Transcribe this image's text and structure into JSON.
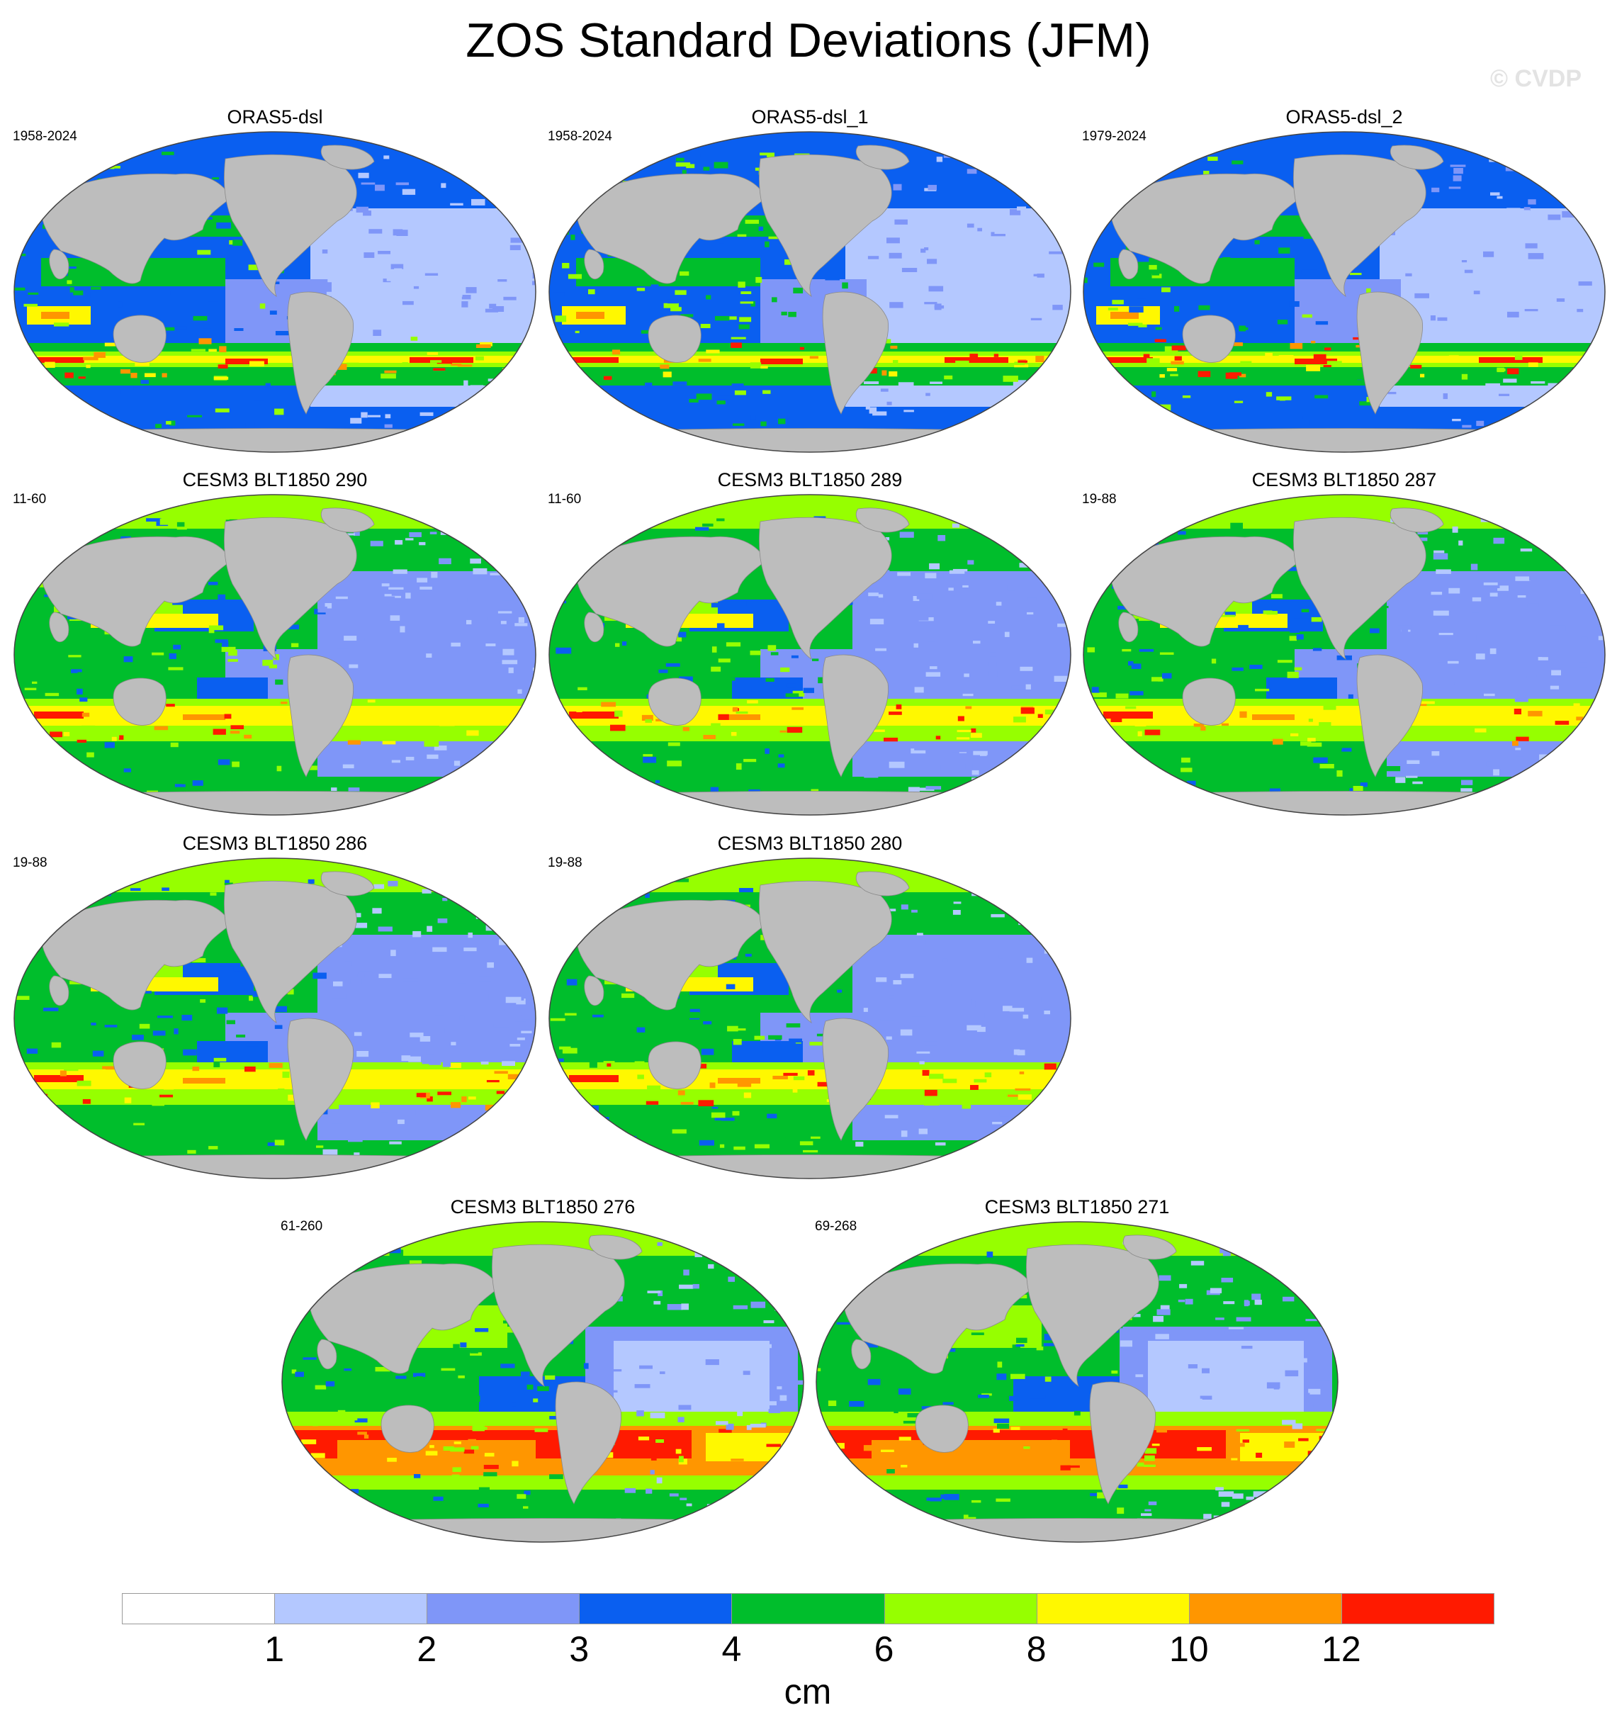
{
  "title": "ZOS Standard Deviations (JFM)",
  "watermark": "© CVDP",
  "colors": {
    "land": "#bdbdbd",
    "levels": [
      "#ffffff",
      "#b4c8ff",
      "#7f96f8",
      "#0a5ff0",
      "#00be2c",
      "#96ff00",
      "#fff800",
      "#ff9600",
      "#ff1a00"
    ]
  },
  "panels": [
    {
      "title": "ORAS5-dsl",
      "years": "1958-2024"
    },
    {
      "title": "ORAS5-dsl_1",
      "years": "1958-2024"
    },
    {
      "title": "ORAS5-dsl_2",
      "years": "1979-2024"
    },
    {
      "title": "CESM3 BLT1850 290",
      "years": "11-60"
    },
    {
      "title": "CESM3 BLT1850 289",
      "years": "11-60"
    },
    {
      "title": "CESM3 BLT1850 287",
      "years": "19-88"
    },
    {
      "title": "CESM3 BLT1850 286",
      "years": "19-88"
    },
    {
      "title": "CESM3 BLT1850 280",
      "years": "19-88"
    },
    {
      "title": "CESM3 BLT1850 276",
      "years": "61-260"
    },
    {
      "title": "CESM3 BLT1850 271",
      "years": "69-268"
    }
  ],
  "colorbar": {
    "labels": [
      "1",
      "2",
      "3",
      "4",
      "6",
      "8",
      "10",
      "12"
    ],
    "unit": "cm"
  }
}
